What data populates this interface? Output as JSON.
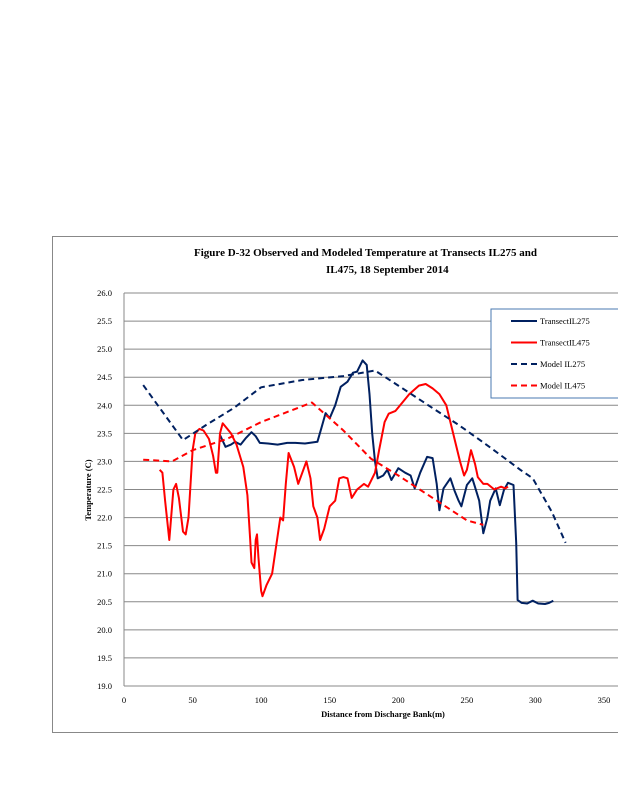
{
  "chart_data": {
    "type": "line",
    "title_line1": "Figure    D-32 Observed          and  Modeled          Temperature           at  Transects          IL275      and",
    "title_line2": "IL475,      18  September           2014",
    "xlabel": "Distance      from     Discharge      Bank(m)",
    "ylabel": "Temperature        (C)",
    "xlim": [
      0,
      350
    ],
    "ylim": [
      19.0,
      26.0
    ],
    "xticks": [
      "0",
      "50",
      "100",
      "150",
      "200",
      "250",
      "300",
      "350"
    ],
    "yticks": [
      "19.0",
      "19.5",
      "20.0",
      "20.5",
      "21.0",
      "21.5",
      "22.0",
      "22.5",
      "23.0",
      "23.5",
      "24.0",
      "24.5",
      "25.0",
      "25.5",
      "26.0"
    ],
    "grid": "horizontal",
    "legend_position": "top-right",
    "series": [
      {
        "name": "TransectIL275",
        "color": "#002060",
        "dash": false,
        "points": [
          [
            70,
            23.47
          ],
          [
            74,
            23.26
          ],
          [
            78,
            23.3
          ],
          [
            81,
            23.35
          ],
          [
            85,
            23.3
          ],
          [
            89,
            23.42
          ],
          [
            93,
            23.52
          ],
          [
            96,
            23.45
          ],
          [
            99,
            23.33
          ],
          [
            105,
            23.32
          ],
          [
            112,
            23.3
          ],
          [
            119,
            23.33
          ],
          [
            125,
            23.33
          ],
          [
            132,
            23.32
          ],
          [
            141,
            23.35
          ],
          [
            144,
            23.6
          ],
          [
            147,
            23.86
          ],
          [
            150,
            23.77
          ],
          [
            154,
            24.0
          ],
          [
            158,
            24.33
          ],
          [
            163,
            24.42
          ],
          [
            167,
            24.58
          ],
          [
            170,
            24.6
          ],
          [
            174,
            24.8
          ],
          [
            177,
            24.72
          ],
          [
            179,
            24.2
          ],
          [
            181,
            23.5
          ],
          [
            183,
            23.0
          ],
          [
            185,
            22.7
          ],
          [
            189,
            22.75
          ],
          [
            192,
            22.85
          ],
          [
            195,
            22.67
          ],
          [
            200,
            22.88
          ],
          [
            205,
            22.8
          ],
          [
            209,
            22.75
          ],
          [
            212,
            22.52
          ],
          [
            216,
            22.8
          ],
          [
            221,
            23.08
          ],
          [
            225,
            23.06
          ],
          [
            228,
            22.6
          ],
          [
            230,
            22.13
          ],
          [
            233,
            22.52
          ],
          [
            238,
            22.7
          ],
          [
            241,
            22.48
          ],
          [
            244,
            22.3
          ],
          [
            246,
            22.2
          ],
          [
            250,
            22.58
          ],
          [
            254,
            22.7
          ],
          [
            256,
            22.54
          ],
          [
            259,
            22.3
          ],
          [
            262,
            21.72
          ],
          [
            265,
            22.0
          ],
          [
            267,
            22.3
          ],
          [
            271,
            22.52
          ],
          [
            274,
            22.22
          ],
          [
            277,
            22.49
          ],
          [
            280,
            22.62
          ],
          [
            284,
            22.58
          ],
          [
            286,
            21.55
          ],
          [
            287,
            20.53
          ],
          [
            290,
            20.48
          ],
          [
            294,
            20.47
          ],
          [
            298,
            20.52
          ],
          [
            302,
            20.47
          ],
          [
            307,
            20.46
          ],
          [
            310,
            20.48
          ],
          [
            313,
            20.52
          ]
        ]
      },
      {
        "name": "TransectIL475",
        "color": "#ff0000",
        "dash": false,
        "points": [
          [
            26,
            22.85
          ],
          [
            28,
            22.8
          ],
          [
            30,
            22.3
          ],
          [
            33,
            21.6
          ],
          [
            36,
            22.5
          ],
          [
            38,
            22.6
          ],
          [
            40,
            22.35
          ],
          [
            43,
            21.75
          ],
          [
            45,
            21.7
          ],
          [
            47,
            22.0
          ],
          [
            50,
            23.2
          ],
          [
            52,
            23.5
          ],
          [
            55,
            23.58
          ],
          [
            58,
            23.55
          ],
          [
            62,
            23.4
          ],
          [
            65,
            23.1
          ],
          [
            67,
            22.8
          ],
          [
            68,
            22.8
          ],
          [
            70,
            23.5
          ],
          [
            72,
            23.68
          ],
          [
            78,
            23.5
          ],
          [
            82,
            23.3
          ],
          [
            87,
            22.9
          ],
          [
            90,
            22.4
          ],
          [
            92,
            21.6
          ],
          [
            93,
            21.2
          ],
          [
            95,
            21.1
          ],
          [
            96,
            21.6
          ],
          [
            97,
            21.7
          ],
          [
            98,
            21.3
          ],
          [
            100,
            20.7
          ],
          [
            101,
            20.6
          ],
          [
            104,
            20.8
          ],
          [
            108,
            21.0
          ],
          [
            111,
            21.5
          ],
          [
            114,
            22.0
          ],
          [
            116,
            21.95
          ],
          [
            118,
            22.6
          ],
          [
            120,
            23.15
          ],
          [
            124,
            22.9
          ],
          [
            127,
            22.6
          ],
          [
            130,
            22.8
          ],
          [
            133,
            23.0
          ],
          [
            136,
            22.7
          ],
          [
            138,
            22.2
          ],
          [
            141,
            22.0
          ],
          [
            143,
            21.6
          ],
          [
            146,
            21.8
          ],
          [
            150,
            22.2
          ],
          [
            154,
            22.3
          ],
          [
            157,
            22.7
          ],
          [
            160,
            22.72
          ],
          [
            163,
            22.7
          ],
          [
            166,
            22.35
          ],
          [
            170,
            22.5
          ],
          [
            175,
            22.6
          ],
          [
            178,
            22.55
          ],
          [
            183,
            22.8
          ],
          [
            186,
            23.2
          ],
          [
            190,
            23.7
          ],
          [
            193,
            23.85
          ],
          [
            198,
            23.9
          ],
          [
            203,
            24.05
          ],
          [
            208,
            24.2
          ],
          [
            215,
            24.35
          ],
          [
            220,
            24.38
          ],
          [
            225,
            24.3
          ],
          [
            230,
            24.2
          ],
          [
            235,
            24.0
          ],
          [
            238,
            23.7
          ],
          [
            242,
            23.3
          ],
          [
            245,
            23.0
          ],
          [
            248,
            22.75
          ],
          [
            250,
            22.85
          ],
          [
            253,
            23.2
          ],
          [
            256,
            22.95
          ],
          [
            258,
            22.72
          ],
          [
            262,
            22.6
          ],
          [
            265,
            22.6
          ],
          [
            270,
            22.5
          ],
          [
            275,
            22.55
          ],
          [
            278,
            22.52
          ],
          [
            280,
            22.55
          ]
        ]
      },
      {
        "name": "Model    IL275",
        "color": "#002060",
        "dash": true,
        "points": [
          [
            14,
            24.36
          ],
          [
            43,
            23.38
          ],
          [
            60,
            23.65
          ],
          [
            80,
            23.95
          ],
          [
            100,
            24.32
          ],
          [
            130,
            24.45
          ],
          [
            160,
            24.52
          ],
          [
            183,
            24.62
          ],
          [
            200,
            24.35
          ],
          [
            225,
            23.95
          ],
          [
            244,
            23.65
          ],
          [
            267,
            23.25
          ],
          [
            289,
            22.85
          ],
          [
            298,
            22.7
          ],
          [
            312,
            22.1
          ],
          [
            322,
            21.55
          ]
        ]
      },
      {
        "name": "Model    IL475",
        "color": "#ff0000",
        "dash": true,
        "points": [
          [
            14,
            23.03
          ],
          [
            35,
            23.0
          ],
          [
            50,
            23.2
          ],
          [
            75,
            23.4
          ],
          [
            100,
            23.7
          ],
          [
            137,
            24.05
          ],
          [
            160,
            23.55
          ],
          [
            180,
            23.05
          ],
          [
            200,
            22.75
          ],
          [
            225,
            22.35
          ],
          [
            250,
            21.95
          ],
          [
            262,
            21.87
          ]
        ]
      }
    ]
  }
}
